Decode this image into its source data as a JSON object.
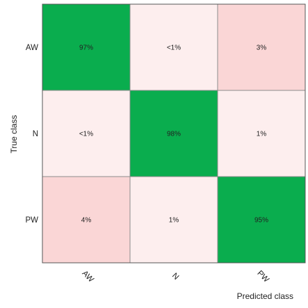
{
  "chart_data": {
    "type": "heatmap",
    "title": "",
    "xlabel": "Predicted class",
    "ylabel": "True class",
    "row_labels": [
      "AW",
      "N",
      "PW"
    ],
    "col_labels": [
      "AW",
      "N",
      "PW"
    ],
    "cells": [
      [
        "97%",
        "<1%",
        "3%"
      ],
      [
        "<1%",
        "98%",
        "1%"
      ],
      [
        "4%",
        "1%",
        "95%"
      ]
    ],
    "values": [
      [
        97,
        0.5,
        3
      ],
      [
        0.5,
        98,
        1
      ],
      [
        4,
        1,
        95
      ]
    ],
    "colors": {
      "diagonal": "#0aad4e",
      "offdiagonal_light": "#fdeeee",
      "offdiagonal_dark": "#fad6d6",
      "grid": "#8c8c8c",
      "text": "#222222"
    }
  }
}
